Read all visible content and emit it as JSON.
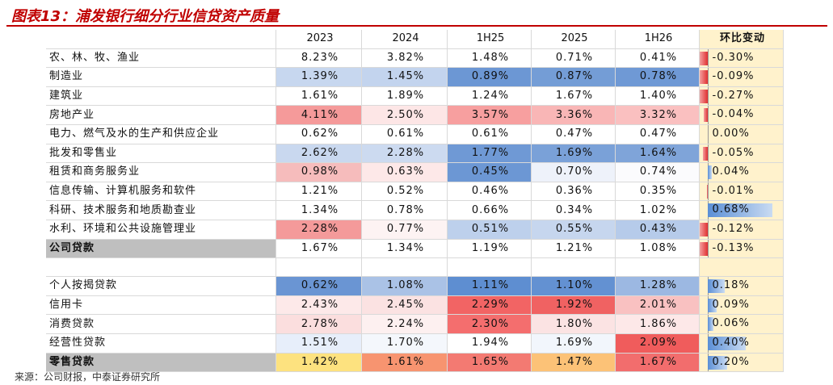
{
  "title": "图表13：浦发银行细分行业信贷资产质量",
  "columns": [
    "2023",
    "2024",
    "1H25",
    "2025",
    "1H26"
  ],
  "change_header": "环比变动",
  "corporate_rows": [
    {
      "label": "农、林、牧、渔业",
      "values": [
        "8.23%",
        "3.82%",
        "1.48%",
        "0.71%",
        "0.41%"
      ],
      "change": "-0.30%",
      "delta": -0.3
    },
    {
      "label": "制造业",
      "values": [
        "1.39%",
        "1.45%",
        "0.89%",
        "0.87%",
        "0.78%"
      ],
      "change": "-0.09%",
      "delta": -0.09
    },
    {
      "label": "建筑业",
      "values": [
        "1.61%",
        "1.89%",
        "1.24%",
        "1.67%",
        "1.40%"
      ],
      "change": "-0.27%",
      "delta": -0.27
    },
    {
      "label": "房地产业",
      "values": [
        "4.11%",
        "2.50%",
        "3.57%",
        "3.36%",
        "3.32%"
      ],
      "change": "-0.04%",
      "delta": -0.04
    },
    {
      "label": "电力、燃气及水的生产和供应企业",
      "values": [
        "0.62%",
        "0.61%",
        "0.61%",
        "0.47%",
        "0.47%"
      ],
      "change": "0.00%",
      "delta": 0.0
    },
    {
      "label": "批发和零售业",
      "values": [
        "2.62%",
        "2.28%",
        "1.77%",
        "1.69%",
        "1.64%"
      ],
      "change": "-0.05%",
      "delta": -0.05
    },
    {
      "label": "租赁和商务服务业",
      "values": [
        "0.98%",
        "0.63%",
        "0.45%",
        "0.70%",
        "0.74%"
      ],
      "change": "0.04%",
      "delta": 0.04
    },
    {
      "label": "信息传输、计算机服务和软件",
      "values": [
        "1.21%",
        "0.52%",
        "0.46%",
        "0.36%",
        "0.35%"
      ],
      "change": "-0.01%",
      "delta": -0.01
    },
    {
      "label": "科研、技术服务和地质勘查业",
      "values": [
        "1.34%",
        "0.78%",
        "0.66%",
        "0.34%",
        "1.02%"
      ],
      "change": "0.68%",
      "delta": 0.68
    },
    {
      "label": "水利、环境和公共设施管理业",
      "values": [
        "2.28%",
        "0.77%",
        "0.51%",
        "0.55%",
        "0.43%"
      ],
      "change": "-0.12%",
      "delta": -0.12
    },
    {
      "label": "公司贷款",
      "values": [
        "1.67%",
        "1.34%",
        "1.19%",
        "1.21%",
        "1.08%"
      ],
      "change": "-0.13%",
      "delta": -0.13
    }
  ],
  "retail_rows": [
    {
      "label": "个人按揭贷款",
      "values": [
        "0.62%",
        "1.08%",
        "1.11%",
        "1.10%",
        "1.28%"
      ],
      "change": "0.18%",
      "delta": 0.18
    },
    {
      "label": "信用卡",
      "values": [
        "2.43%",
        "2.45%",
        "2.29%",
        "1.92%",
        "2.01%"
      ],
      "change": "0.09%",
      "delta": 0.09
    },
    {
      "label": "消费贷款",
      "values": [
        "2.78%",
        "2.24%",
        "2.30%",
        "1.80%",
        "1.86%"
      ],
      "change": "0.06%",
      "delta": 0.06
    },
    {
      "label": "经营性贷款",
      "values": [
        "1.51%",
        "1.70%",
        "1.94%",
        "1.69%",
        "2.09%"
      ],
      "change": "0.40%",
      "delta": 0.4
    },
    {
      "label": "零售贷款",
      "values": [
        "1.42%",
        "1.61%",
        "1.65%",
        "1.47%",
        "1.67%"
      ],
      "change": "0.20%",
      "delta": 0.2
    }
  ],
  "cell_colors": {
    "corporate": [
      [
        "#ffffff",
        "#ffffff",
        "#ffffff",
        "#ffffff",
        "#ffffff"
      ],
      [
        "#c7d7ef",
        "#c3d4ee",
        "#6c97d4",
        "#749dd6",
        "#6f99d5"
      ],
      [
        "#ffffff",
        "#ffffff",
        "#ffffff",
        "#ffffff",
        "#ffffff"
      ],
      [
        "#f59a9a",
        "#fde6e6",
        "#f79f9f",
        "#f9b6b6",
        "#fac0c0"
      ],
      [
        "#ffffff",
        "#ffffff",
        "#ffffff",
        "#ffffff",
        "#ffffff"
      ],
      [
        "#c9d8ef",
        "#ccdaf0",
        "#6f99d5",
        "#7aa1d8",
        "#7fa4d9"
      ],
      [
        "#f6bcbc",
        "#fde8e8",
        "#6c97d4",
        "#eef2fa",
        "#fbfbfd"
      ],
      [
        "#ffffff",
        "#ffffff",
        "#ffffff",
        "#ffffff",
        "#ffffff"
      ],
      [
        "#ffffff",
        "#ffffff",
        "#ffffff",
        "#ffffff",
        "#ffffff"
      ],
      [
        "#f49a9a",
        "#fdf3f3",
        "#bdd0ec",
        "#c6d6ee",
        "#b6cbea"
      ],
      [
        "#ffffff",
        "#ffffff",
        "#ffffff",
        "#ffffff",
        "#ffffff"
      ]
    ],
    "retail": [
      [
        "#6a95d3",
        "#aac2e6",
        "#5e8ed1",
        "#6391d2",
        "#9cb8e2"
      ],
      [
        "#fde9e9",
        "#fbe2e2",
        "#f26464",
        "#f06262",
        "#f9c1c1"
      ],
      [
        "#fbdede",
        "#fdf0f0",
        "#f46e6e",
        "#fbe3e3",
        "#fde8e8"
      ],
      [
        "#e7eefa",
        "#f4f7fc",
        "#ffffff",
        "#f2f6fc",
        "#f05c5c"
      ],
      [
        "#fde27f",
        "#f79470",
        "#f37a72",
        "#fcc277",
        "#f26d6d"
      ]
    ]
  },
  "footer": "来源：公司财报，中泰证券研究所"
}
